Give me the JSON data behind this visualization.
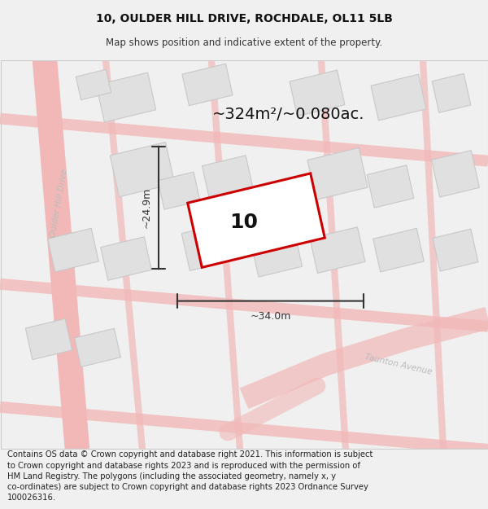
{
  "title": "10, OULDER HILL DRIVE, ROCHDALE, OL11 5LB",
  "subtitle": "Map shows position and indicative extent of the property.",
  "footer": "Contains OS data © Crown copyright and database right 2021. This information is subject to Crown copyright and database rights 2023 and is reproduced with the permission of HM Land Registry. The polygons (including the associated geometry, namely x, y co-ordinates) are subject to Crown copyright and database rights 2023 Ordnance Survey 100026316.",
  "area_label": "~324m²/~0.080ac.",
  "width_label": "~34.0m",
  "height_label": "~24.9m",
  "number_label": "10",
  "bg_color": "#f0f0f0",
  "map_bg": "#f8f8f8",
  "title_fontsize": 10,
  "subtitle_fontsize": 8.5,
  "footer_fontsize": 7.2,
  "road_color": "#f2b8b8",
  "road_edge": "#e8a0a0",
  "building_color": "#e0e0e0",
  "building_edge": "#c8c8c8",
  "property_color": "#cc0000",
  "dim_color": "#333333",
  "street_label_color": "#bbbbbb",
  "map_border_color": "#cccccc",
  "title_color": "#111111",
  "subtitle_color": "#333333",
  "footer_color": "#222222"
}
